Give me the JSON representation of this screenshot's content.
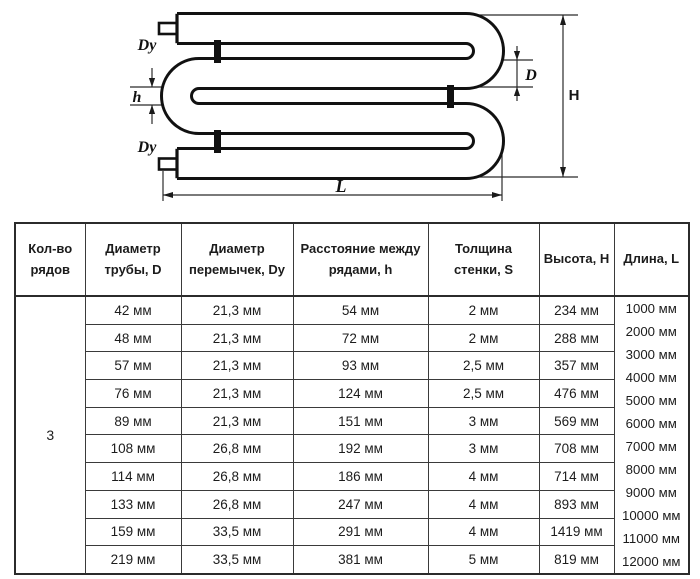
{
  "diagram": {
    "labels": {
      "jumper_top": "Dy",
      "jumper_bottom": "Dy",
      "row_gap": "h",
      "pipe_diameter": "D",
      "height": "H",
      "length": "L"
    },
    "line_color": "#111111",
    "dim_line_color": "#2b2b2b"
  },
  "table": {
    "columns": [
      {
        "label": "Кол-во рядов"
      },
      {
        "label": "Диаметр трубы, D"
      },
      {
        "label": "Диаметр перемычек, Dy"
      },
      {
        "label": "Расстояние между рядами, h"
      },
      {
        "label": "Толщина стенки, S"
      },
      {
        "label": "Высота, H"
      },
      {
        "label": "Длина, L"
      }
    ],
    "rows_count_value": "3",
    "rows": [
      [
        "42 мм",
        "21,3 мм",
        "54 мм",
        "2 мм",
        "234 мм"
      ],
      [
        "48 мм",
        "21,3 мм",
        "72 мм",
        "2 мм",
        "288 мм"
      ],
      [
        "57 мм",
        "21,3 мм",
        "93 мм",
        "2,5 мм",
        "357 мм"
      ],
      [
        "76 мм",
        "21,3 мм",
        "124 мм",
        "2,5 мм",
        "476 мм"
      ],
      [
        "89 мм",
        "21,3 мм",
        "151 мм",
        "3 мм",
        "569 мм"
      ],
      [
        "108 мм",
        "26,8 мм",
        "192 мм",
        "3 мм",
        "708 мм"
      ],
      [
        "114 мм",
        "26,8 мм",
        "186 мм",
        "4 мм",
        "714 мм"
      ],
      [
        "133 мм",
        "26,8 мм",
        "247 мм",
        "4 мм",
        "893 мм"
      ],
      [
        "159 мм",
        "33,5 мм",
        "291 мм",
        "4 мм",
        "1419 мм"
      ],
      [
        "219 мм",
        "33,5 мм",
        "381 мм",
        "5 мм",
        "819 мм"
      ]
    ],
    "lengths": [
      "1000 мм",
      "2000 мм",
      "3000 мм",
      "4000 мм",
      "5000 мм",
      "6000 мм",
      "7000 мм",
      "8000 мм",
      "9000 мм",
      "10000 мм",
      "11000 мм",
      "12000 мм"
    ]
  }
}
